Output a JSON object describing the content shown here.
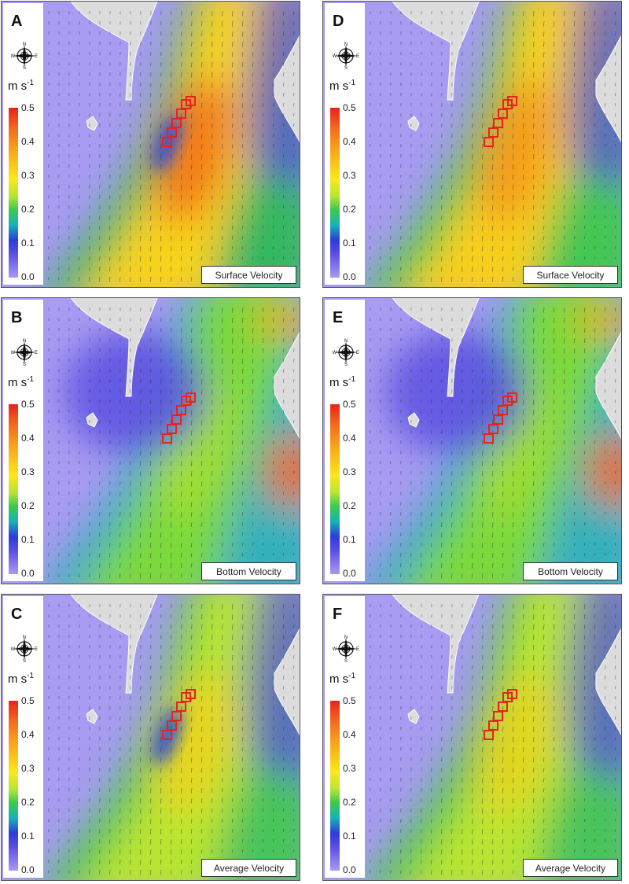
{
  "colorbar": {
    "unit_base": "m s",
    "unit_exp": "-1",
    "ticks": [
      "0.5",
      "0.4",
      "0.3",
      "0.2",
      "0.1",
      "0.0"
    ]
  },
  "compass": {
    "n": "N",
    "e": "E",
    "s": "S",
    "w": "W"
  },
  "panels": [
    {
      "id": "A",
      "label": "A",
      "caption": "Surface Velocity",
      "variant": "surface-hot"
    },
    {
      "id": "D",
      "label": "D",
      "caption": "Surface Velocity",
      "variant": "surface-broad"
    },
    {
      "id": "B",
      "label": "B",
      "caption": "Bottom Velocity",
      "variant": "bottom-eddy"
    },
    {
      "id": "E",
      "label": "E",
      "caption": "Bottom Velocity",
      "variant": "bottom-smooth"
    },
    {
      "id": "C",
      "label": "C",
      "caption": "Average Velocity",
      "variant": "average-hot"
    },
    {
      "id": "F",
      "label": "F",
      "caption": "Average Velocity",
      "variant": "average-smooth"
    }
  ],
  "colors": {
    "land": "#dcdcdc",
    "background": "#a89bf2",
    "site_outline": "#e8231b",
    "vector": "#222222"
  }
}
